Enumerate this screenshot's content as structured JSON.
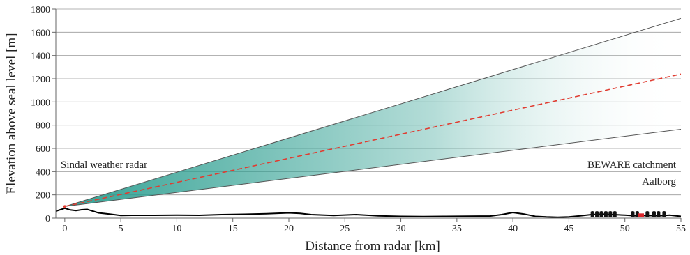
{
  "chart_data": {
    "type": "line",
    "xlabel": "Distance from radar [km]",
    "ylabel": "Elevation above seal level  [m]",
    "xlim": [
      -0.8,
      55
    ],
    "ylim": [
      0,
      1800
    ],
    "x_ticks": [
      "0",
      "5",
      "10",
      "15",
      "20",
      "25",
      "30",
      "35",
      "40",
      "45",
      "50",
      "55"
    ],
    "y_ticks": [
      "0",
      "200",
      "400",
      "600",
      "800",
      "1000",
      "1200",
      "1400",
      "1600",
      "1800"
    ],
    "grid": "horizontal",
    "series": [
      {
        "role": "beam-upper-edge",
        "color": "#555555",
        "x": [
          0,
          55
        ],
        "y": [
          100,
          1720
        ]
      },
      {
        "role": "beam-center",
        "color": "#e03c31",
        "style": "dashed",
        "x": [
          0,
          55
        ],
        "y": [
          100,
          1240
        ]
      },
      {
        "role": "beam-lower-edge",
        "color": "#555555",
        "x": [
          0,
          55
        ],
        "y": [
          100,
          765
        ]
      },
      {
        "role": "terrain",
        "color": "#000000",
        "x": [
          -0.8,
          -0.3,
          0,
          0.5,
          1,
          1.5,
          2,
          2.5,
          3,
          4,
          5,
          6,
          8,
          10,
          12,
          14,
          16,
          18,
          20,
          21,
          22,
          24,
          26,
          28,
          30,
          32,
          34,
          36,
          38,
          39,
          40,
          41,
          42,
          43,
          44,
          45,
          46,
          47,
          48,
          50,
          51,
          52,
          53,
          54,
          55
        ],
        "y": [
          60,
          75,
          85,
          70,
          65,
          72,
          75,
          60,
          45,
          35,
          22,
          24,
          24,
          26,
          24,
          30,
          33,
          38,
          45,
          40,
          30,
          22,
          30,
          20,
          15,
          14,
          15,
          16,
          18,
          30,
          48,
          35,
          15,
          10,
          8,
          10,
          20,
          30,
          35,
          25,
          20,
          22,
          20,
          25,
          15
        ]
      }
    ],
    "beam_fill": {
      "from": "#2a9d8f",
      "to": "#ffffff"
    },
    "annotations": {
      "sindal": {
        "text": "Sindal weather radar"
      },
      "beware": {
        "text": "BEWARE catchment",
        "color": "#e03c31"
      },
      "aalborg": {
        "text": "Aalborg"
      }
    },
    "catchment_marker_color": "#d9242a"
  }
}
